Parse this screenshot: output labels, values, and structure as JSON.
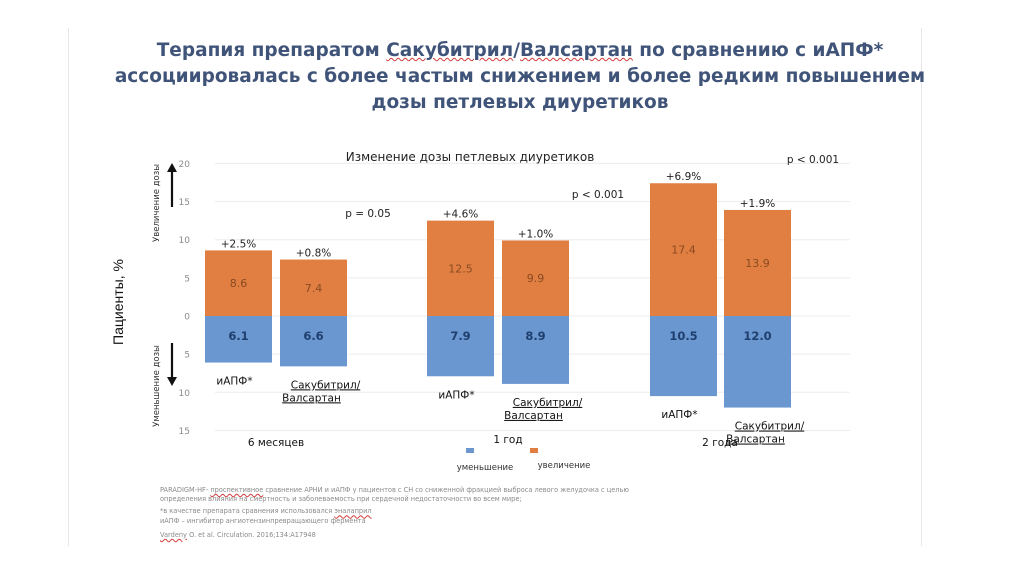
{
  "slide": {
    "title_line1_pre": "Терапия препаратом ",
    "title_line1_u1": "Сакубитрил",
    "title_line1_sep": "/",
    "title_line1_u2": "Валсартан",
    "title_line1_post": " по сравнению с иАПФ*",
    "title_line2": "ассоциировалась с более частым снижением и более редким повышением",
    "title_line3": "дозы петлевых диуретиков"
  },
  "chart_data": {
    "type": "bar",
    "subtype": "diverging-stacked",
    "title": "Изменение дозы петлевых диуретиков",
    "ylabel": "Пациенты, %",
    "y_upper_label": "Увеличение дозы",
    "y_lower_label": "Уменьшение дозы",
    "ylim": [
      -15,
      20
    ],
    "yticks": [
      20,
      15,
      10,
      5,
      0,
      5,
      10,
      15
    ],
    "ytick_values": [
      20,
      15,
      10,
      5,
      0,
      -5,
      -10,
      -15
    ],
    "grid": true,
    "legend": {
      "placement": "bottom-center",
      "entries": [
        {
          "name": "уменьшение",
          "color": "#6a97d0"
        },
        {
          "name": "увеличение",
          "color": "#e07f41"
        }
      ]
    },
    "colors": {
      "increase": "#e07f41",
      "decrease": "#6a97d0",
      "increase_label": "#8a4a22",
      "decrease_label": "#1f3f6e"
    },
    "groups": [
      {
        "period": "6 месяцев",
        "p_value": "p = 0.05",
        "bars": [
          {
            "name": "иАПФ*",
            "increase": 8.6,
            "decrease": 6.1,
            "net_label": "+2.5%"
          },
          {
            "name_line1": "Сакубитрил/",
            "name_line2": "Валсартан",
            "increase": 7.4,
            "decrease": 6.6,
            "net_label": "+0.8%"
          }
        ]
      },
      {
        "period": "1 год",
        "p_value": "p < 0.001",
        "bars": [
          {
            "name": "иАПФ*",
            "increase": 12.5,
            "decrease": 7.9,
            "net_label": "+4.6%"
          },
          {
            "name_line1": "Сакубитрил/",
            "name_line2": "Валсартан",
            "increase": 9.9,
            "decrease": 8.9,
            "net_label": "+1.0%"
          }
        ]
      },
      {
        "period": "2 года",
        "p_value": "p < 0.001",
        "bars": [
          {
            "name": "иАПФ*",
            "increase": 17.4,
            "decrease": 10.5,
            "net_label": "+6.9%"
          },
          {
            "name_line1": "Сакубитрил/",
            "name_line2": "Валсартан",
            "increase": 13.9,
            "decrease": 12.0,
            "net_label": "+1.9%"
          }
        ]
      }
    ]
  },
  "footnotes": {
    "line1_pre": "PARADIGM-HF- ",
    "line1_u": "проспективное",
    "line1_post": " сравнение АРНИ и иАПФ у пациентов с СН со сниженной фракцией выброса левого желудочка с целью",
    "line2": "определения влияния на смертность и заболеваемость при сердечной недостаточности во всем мире;",
    "line3_pre": "*в качестве препарата сравнения использовался ",
    "line3_u": "эналаприл",
    "line4": "иАПФ – ингибитор  ангиотензинпревращающего фермента",
    "ref_u": "Vardeny",
    "ref_post": " O. et al. Circulation. 2016;134:A17948"
  }
}
